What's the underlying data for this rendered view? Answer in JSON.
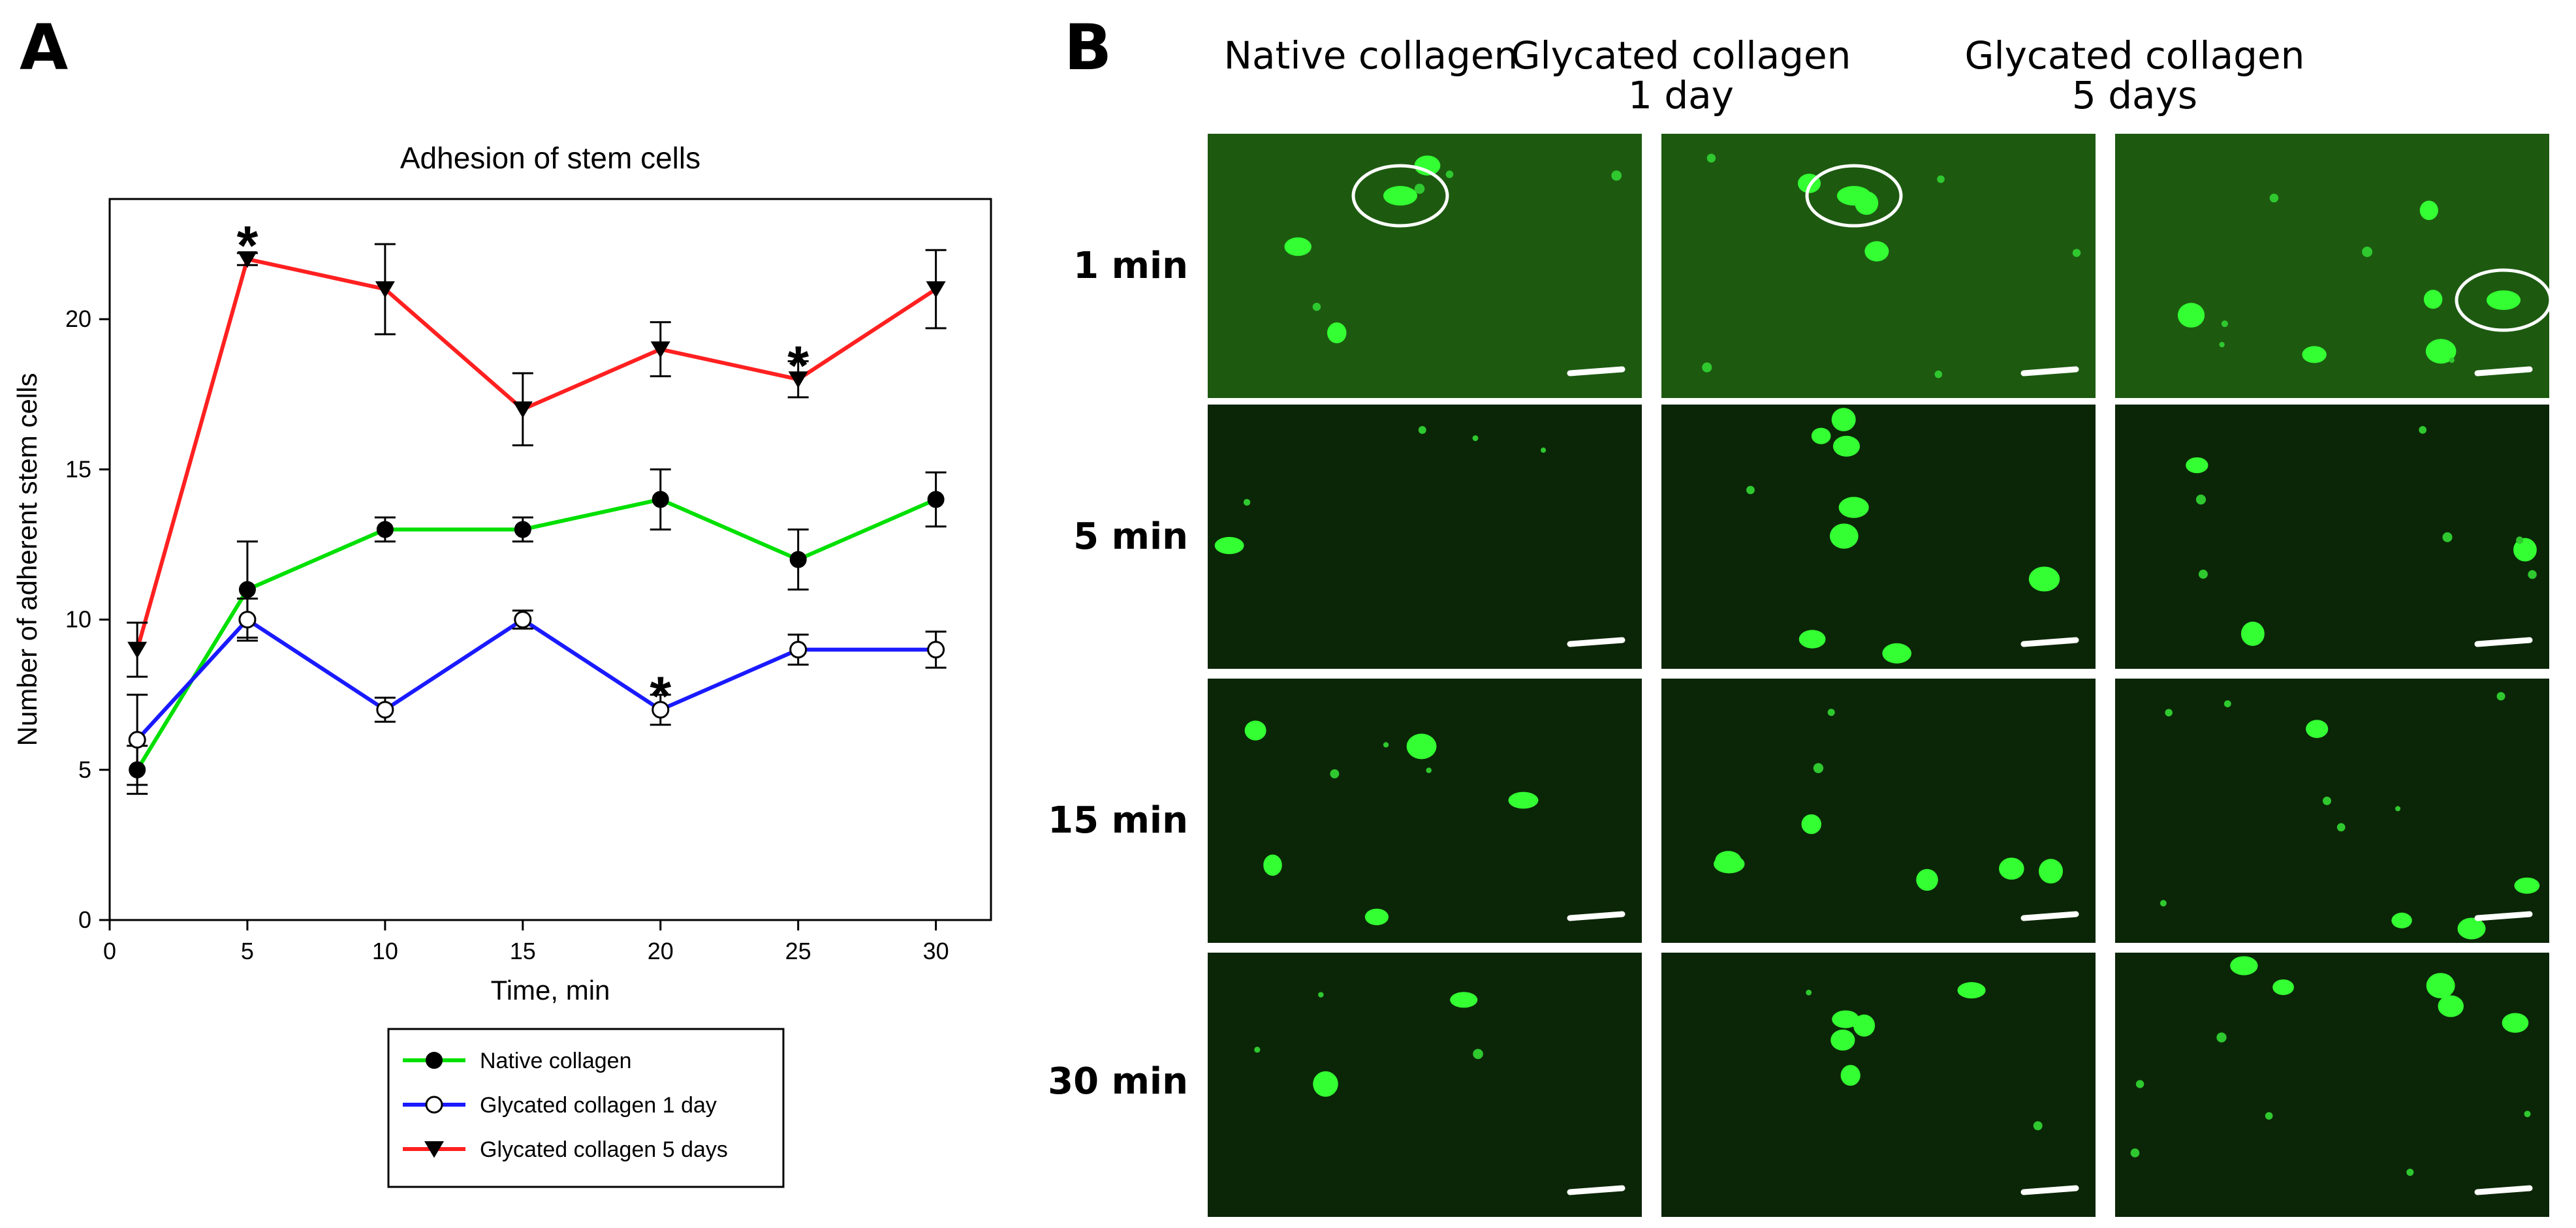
{
  "panel_a_letter": "A",
  "panel_b_letter": "B",
  "chart_data": {
    "type": "line",
    "title": "Adhesion of stem cells",
    "xlabel": "Time, min",
    "ylabel": "Number of adherent stem cells",
    "xlim": [
      0,
      32
    ],
    "ylim": [
      0,
      24
    ],
    "xticks": [
      0,
      5,
      10,
      15,
      20,
      25,
      30
    ],
    "yticks": [
      0,
      5,
      10,
      15,
      20
    ],
    "grid": false,
    "legend_position": "bottom-center, below plot",
    "x": [
      1,
      5,
      10,
      15,
      20,
      25,
      30
    ],
    "series": [
      {
        "name": "Native collagen",
        "color": "#00e000",
        "marker": "filled-circle",
        "values": [
          5,
          11,
          13,
          13,
          14,
          12,
          14
        ],
        "errors": [
          0.8,
          1.6,
          0.4,
          0.4,
          1.0,
          1.0,
          0.9
        ]
      },
      {
        "name": "Glycated collagen 1 day",
        "color": "#1a1aff",
        "marker": "open-circle",
        "values": [
          6,
          10,
          7,
          10,
          7,
          9,
          9
        ],
        "errors": [
          1.5,
          0.7,
          0.4,
          0.3,
          0.5,
          0.5,
          0.6
        ]
      },
      {
        "name": "Glycated collagen 5 days",
        "color": "#ff2020",
        "marker": "filled-triangle-down",
        "values": [
          9,
          22,
          21,
          17,
          19,
          18,
          21
        ],
        "errors": [
          0.9,
          0.2,
          1.5,
          1.2,
          0.9,
          0.6,
          1.3
        ]
      }
    ],
    "annotations": [
      {
        "text": "*",
        "x": 5,
        "y": 22.7
      },
      {
        "text": "*",
        "x": 25,
        "y": 18.7
      },
      {
        "text": "*",
        "x": 20,
        "y": 7.7
      }
    ]
  },
  "micrographs": {
    "columns": [
      {
        "title": "Native collagen",
        "subtitle": ""
      },
      {
        "title": "Glycated collagen",
        "subtitle": "1 day"
      },
      {
        "title": "Glycated collagen",
        "subtitle": "5 days"
      }
    ],
    "rows": [
      "1 min",
      "5 min",
      "15 min",
      "30 min"
    ],
    "colors": {
      "cell": "#33ff33",
      "background": "#0b2606",
      "scale_bar": "#ffffff",
      "highlight_ring": "#ffffff"
    }
  }
}
